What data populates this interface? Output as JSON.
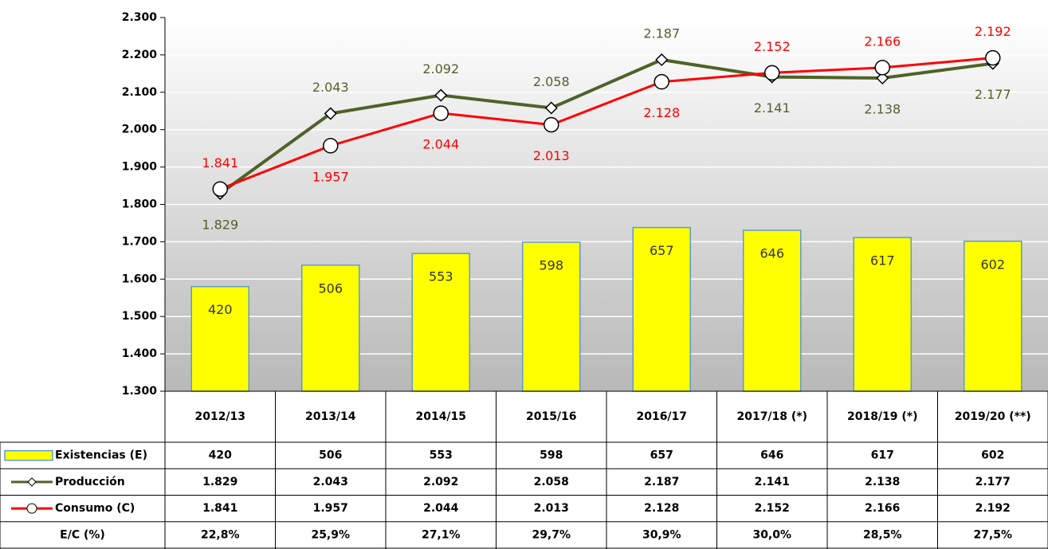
{
  "chart_data": {
    "type": "bar-line",
    "categories": [
      "2012/13",
      "2013/14",
      "2014/15",
      "2015/16",
      "2016/17",
      "2017/18 (*)",
      "2018/19 (*)",
      "2019/20 (**)"
    ],
    "ylim": [
      1300,
      2300
    ],
    "yticks": [
      {
        "value": 1300,
        "label": "1.300"
      },
      {
        "value": 1400,
        "label": "1.400"
      },
      {
        "value": 1500,
        "label": "1.500"
      },
      {
        "value": 1600,
        "label": "1.600"
      },
      {
        "value": 1700,
        "label": "1.700"
      },
      {
        "value": 1800,
        "label": "1.800"
      },
      {
        "value": 1900,
        "label": "1.900"
      },
      {
        "value": 2000,
        "label": "2.000"
      },
      {
        "value": 2100,
        "label": "2.100"
      },
      {
        "value": 2200,
        "label": "2.200"
      },
      {
        "value": 2300,
        "label": "2.300"
      }
    ],
    "y2lim": [
      0,
      1500
    ],
    "grid": true,
    "series": [
      {
        "name": "Existencias (E)",
        "type": "bar",
        "axis": "y2",
        "color": "#ffff00",
        "values": [
          420,
          506,
          553,
          598,
          657,
          646,
          617,
          602
        ]
      },
      {
        "name": "Producción",
        "type": "line",
        "marker": "diamond",
        "color": "#4f6228",
        "values": [
          1829,
          2043,
          2092,
          2058,
          2187,
          2141,
          2138,
          2177
        ],
        "value_labels": [
          "1.829",
          "2.043",
          "2.092",
          "2.058",
          "2.187",
          "2.141",
          "2.138",
          "2.177"
        ]
      },
      {
        "name": "Consumo (C)",
        "type": "line",
        "marker": "circle",
        "color": "#ff0000",
        "values": [
          1841,
          1957,
          2044,
          2013,
          2128,
          2152,
          2166,
          2192
        ],
        "value_labels": [
          "1.841",
          "1.957",
          "2.044",
          "2.013",
          "2.128",
          "2.152",
          "2.166",
          "2.192"
        ]
      },
      {
        "name": "E/C (%)",
        "type": "table",
        "values": [
          22.8,
          25.9,
          27.1,
          29.7,
          30.9,
          30.0,
          28.5,
          27.5
        ],
        "value_labels": [
          "22,8%",
          "25,9%",
          "27,1%",
          "29,7%",
          "30,9%",
          "30,0%",
          "28,5%",
          "27,5%"
        ]
      }
    ]
  }
}
